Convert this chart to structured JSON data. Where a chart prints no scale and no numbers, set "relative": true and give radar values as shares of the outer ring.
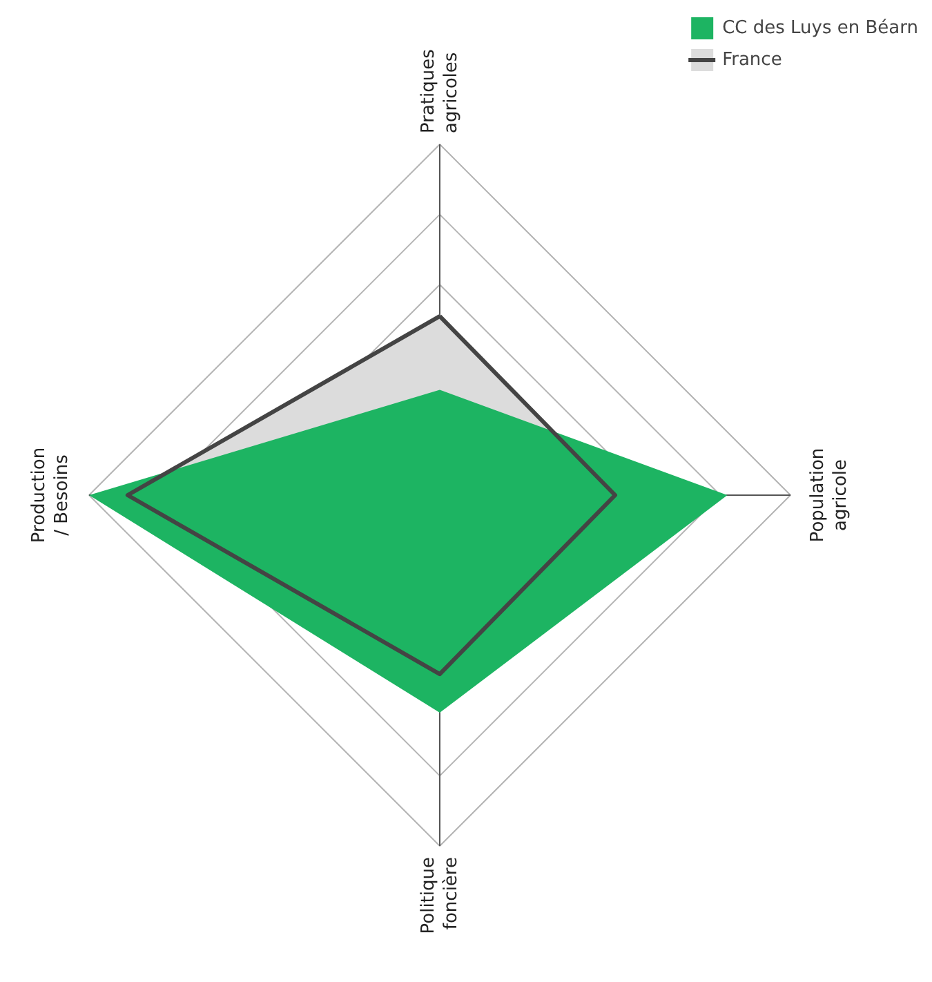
{
  "chart_data": {
    "type": "radar",
    "relative": true,
    "categories": [
      "Pratiques agricoles",
      "Population agricole",
      "Politique foncière",
      "Production / Besoins"
    ],
    "series": [
      {
        "name": "CC des Luys en Béarn",
        "color": "#1db462",
        "values": [
          0.3,
          0.82,
          0.62,
          1.0
        ]
      },
      {
        "name": "France",
        "color": "#dcdcdc",
        "values": [
          0.51,
          0.5,
          0.51,
          0.89
        ],
        "line_style": "solid"
      }
    ],
    "grid": true,
    "legend": "top right"
  }
}
